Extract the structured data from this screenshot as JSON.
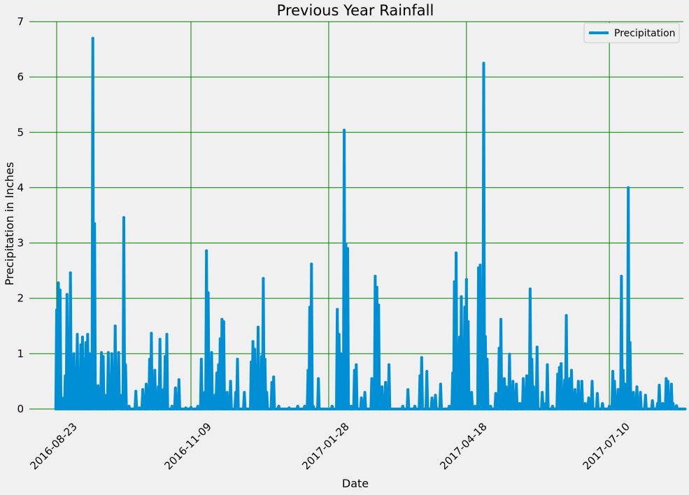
{
  "chart_data": {
    "type": "line",
    "title": "Previous Year Rainfall",
    "xlabel": "Date",
    "ylabel": "Precipitation in Inches",
    "x_range": [
      "2016-08-23",
      "2017-08-23"
    ],
    "ylim": [
      0,
      7
    ],
    "y_ticks": [
      0,
      1,
      2,
      3,
      4,
      5,
      6,
      7
    ],
    "x_tick_labels": [
      "2016-08-23",
      "2016-11-09",
      "2017-01-28",
      "2017-04-18",
      "2017-07-10"
    ],
    "grid": true,
    "grid_color": "#008000",
    "legend": {
      "position": "top-right",
      "entries": [
        "Precipitation"
      ]
    },
    "series": [
      {
        "name": "Precipitation",
        "color": "#008fd5",
        "points": [
          [
            "2016-08-23",
            1.79
          ],
          [
            "2016-08-24",
            2.28
          ],
          [
            "2016-08-25",
            2.15
          ],
          [
            "2016-08-26",
            0.2
          ],
          [
            "2016-08-27",
            0.05
          ],
          [
            "2016-08-28",
            0.6
          ],
          [
            "2016-08-29",
            2.07
          ],
          [
            "2016-08-30",
            0.05
          ],
          [
            "2016-08-31",
            2.46
          ],
          [
            "2016-09-01",
            0.03
          ],
          [
            "2016-09-02",
            1.0
          ],
          [
            "2016-09-03",
            0.75
          ],
          [
            "2016-09-04",
            1.35
          ],
          [
            "2016-09-05",
            0.3
          ],
          [
            "2016-09-06",
            1.16
          ],
          [
            "2016-09-07",
            1.3
          ],
          [
            "2016-09-08",
            0.9
          ],
          [
            "2016-09-09",
            1.2
          ],
          [
            "2016-09-10",
            1.35
          ],
          [
            "2016-09-11",
            1.0
          ],
          [
            "2016-09-13",
            6.7
          ],
          [
            "2016-09-14",
            3.35
          ],
          [
            "2016-09-15",
            0.4
          ],
          [
            "2016-09-16",
            0.42
          ],
          [
            "2016-09-17",
            0.2
          ],
          [
            "2016-09-18",
            1.02
          ],
          [
            "2016-09-19",
            0.95
          ],
          [
            "2016-09-20",
            0.25
          ],
          [
            "2016-09-22",
            1.02
          ],
          [
            "2016-09-24",
            1.0
          ],
          [
            "2016-09-26",
            1.5
          ],
          [
            "2016-09-27",
            0.33
          ],
          [
            "2016-09-28",
            1.02
          ],
          [
            "2016-09-29",
            0.25
          ],
          [
            "2016-10-01",
            3.46
          ],
          [
            "2016-10-02",
            0.8
          ],
          [
            "2016-10-04",
            0.05
          ],
          [
            "2016-10-08",
            0.32
          ],
          [
            "2016-10-10",
            0.02
          ],
          [
            "2016-10-12",
            0.35
          ],
          [
            "2016-10-14",
            0.45
          ],
          [
            "2016-10-16",
            0.9
          ],
          [
            "2016-10-17",
            1.37
          ],
          [
            "2016-10-19",
            0.7
          ],
          [
            "2016-10-21",
            0.4
          ],
          [
            "2016-10-22",
            1.26
          ],
          [
            "2016-10-24",
            0.35
          ],
          [
            "2016-10-25",
            0.95
          ],
          [
            "2016-10-26",
            1.35
          ],
          [
            "2016-10-29",
            0.05
          ],
          [
            "2016-10-31",
            0.38
          ],
          [
            "2016-11-02",
            0.53
          ],
          [
            "2016-11-06",
            0.02
          ],
          [
            "2016-11-09",
            0.03
          ],
          [
            "2016-11-13",
            0.05
          ],
          [
            "2016-11-15",
            0.9
          ],
          [
            "2016-11-17",
            0.3
          ],
          [
            "2016-11-18",
            2.86
          ],
          [
            "2016-11-19",
            2.1
          ],
          [
            "2016-11-20",
            0.7
          ],
          [
            "2016-11-21",
            1.02
          ],
          [
            "2016-11-23",
            0.25
          ],
          [
            "2016-11-24",
            0.65
          ],
          [
            "2016-11-25",
            0.8
          ],
          [
            "2016-11-26",
            1.27
          ],
          [
            "2016-11-27",
            1.62
          ],
          [
            "2016-11-28",
            1.58
          ],
          [
            "2016-11-30",
            0.3
          ],
          [
            "2016-12-02",
            0.5
          ],
          [
            "2016-12-05",
            0.3
          ],
          [
            "2016-12-06",
            0.9
          ],
          [
            "2016-12-10",
            0.3
          ],
          [
            "2016-12-14",
            0.85
          ],
          [
            "2016-12-15",
            1.22
          ],
          [
            "2016-12-16",
            1.08
          ],
          [
            "2016-12-18",
            1.48
          ],
          [
            "2016-12-20",
            0.95
          ],
          [
            "2016-12-21",
            2.36
          ],
          [
            "2016-12-22",
            0.9
          ],
          [
            "2016-12-23",
            0.3
          ],
          [
            "2016-12-26",
            0.48
          ],
          [
            "2016-12-27",
            0.58
          ],
          [
            "2016-12-30",
            0.05
          ],
          [
            "2017-01-05",
            0.02
          ],
          [
            "2017-01-10",
            0.05
          ],
          [
            "2017-01-14",
            0.05
          ],
          [
            "2017-01-16",
            0.7
          ],
          [
            "2017-01-17",
            1.84
          ],
          [
            "2017-01-18",
            2.62
          ],
          [
            "2017-01-19",
            0.05
          ],
          [
            "2017-01-22",
            0.55
          ],
          [
            "2017-01-30",
            0.05
          ],
          [
            "2017-02-02",
            1.8
          ],
          [
            "2017-02-03",
            1.35
          ],
          [
            "2017-02-04",
            1.0
          ],
          [
            "2017-02-05",
            0.05
          ],
          [
            "2017-02-06",
            5.04
          ],
          [
            "2017-02-07",
            2.98
          ],
          [
            "2017-02-08",
            2.9
          ],
          [
            "2017-02-10",
            0.05
          ],
          [
            "2017-02-12",
            0.7
          ],
          [
            "2017-02-13",
            0.8
          ],
          [
            "2017-02-16",
            0.2
          ],
          [
            "2017-02-18",
            0.3
          ],
          [
            "2017-02-22",
            0.55
          ],
          [
            "2017-02-24",
            2.4
          ],
          [
            "2017-02-25",
            2.2
          ],
          [
            "2017-02-26",
            1.88
          ],
          [
            "2017-02-28",
            0.4
          ],
          [
            "2017-03-02",
            0.48
          ],
          [
            "2017-03-04",
            0.8
          ],
          [
            "2017-03-12",
            0.05
          ],
          [
            "2017-03-15",
            0.35
          ],
          [
            "2017-03-19",
            0.05
          ],
          [
            "2017-03-22",
            0.6
          ],
          [
            "2017-03-23",
            0.93
          ],
          [
            "2017-03-26",
            0.68
          ],
          [
            "2017-03-29",
            0.2
          ],
          [
            "2017-03-31",
            0.25
          ],
          [
            "2017-04-03",
            0.45
          ],
          [
            "2017-04-08",
            0.05
          ],
          [
            "2017-04-10",
            0.65
          ],
          [
            "2017-04-11",
            2.3
          ],
          [
            "2017-04-12",
            2.82
          ],
          [
            "2017-04-13",
            0.9
          ],
          [
            "2017-04-14",
            1.3
          ],
          [
            "2017-04-15",
            2.03
          ],
          [
            "2017-04-16",
            0.35
          ],
          [
            "2017-04-17",
            1.84
          ],
          [
            "2017-04-18",
            2.34
          ],
          [
            "2017-04-19",
            1.58
          ],
          [
            "2017-04-21",
            0.3
          ],
          [
            "2017-04-23",
            0.05
          ],
          [
            "2017-04-25",
            2.55
          ],
          [
            "2017-04-26",
            2.6
          ],
          [
            "2017-04-28",
            6.25
          ],
          [
            "2017-04-29",
            1.31
          ],
          [
            "2017-04-30",
            0.9
          ],
          [
            "2017-05-02",
            0.05
          ],
          [
            "2017-05-05",
            0.28
          ],
          [
            "2017-05-07",
            1.1
          ],
          [
            "2017-05-08",
            1.62
          ],
          [
            "2017-05-10",
            0.55
          ],
          [
            "2017-05-11",
            0.4
          ],
          [
            "2017-05-13",
            0.99
          ],
          [
            "2017-05-15",
            0.5
          ],
          [
            "2017-05-17",
            0.45
          ],
          [
            "2017-05-19",
            0.1
          ],
          [
            "2017-05-21",
            0.55
          ],
          [
            "2017-05-22",
            0.25
          ],
          [
            "2017-05-23",
            0.6
          ],
          [
            "2017-05-25",
            2.17
          ],
          [
            "2017-05-26",
            0.9
          ],
          [
            "2017-05-27",
            0.4
          ],
          [
            "2017-05-29",
            1.12
          ],
          [
            "2017-06-01",
            0.3
          ],
          [
            "2017-06-03",
            0.1
          ],
          [
            "2017-06-04",
            0.8
          ],
          [
            "2017-06-07",
            0.05
          ],
          [
            "2017-06-10",
            0.63
          ],
          [
            "2017-06-11",
            0.75
          ],
          [
            "2017-06-12",
            0.82
          ],
          [
            "2017-06-14",
            0.52
          ],
          [
            "2017-06-15",
            1.69
          ],
          [
            "2017-06-17",
            0.55
          ],
          [
            "2017-06-18",
            0.7
          ],
          [
            "2017-06-20",
            0.35
          ],
          [
            "2017-06-22",
            0.5
          ],
          [
            "2017-06-24",
            0.5
          ],
          [
            "2017-06-26",
            0.1
          ],
          [
            "2017-06-28",
            0.2
          ],
          [
            "2017-06-30",
            0.5
          ],
          [
            "2017-07-03",
            0.28
          ],
          [
            "2017-07-06",
            0.1
          ],
          [
            "2017-07-10",
            0.05
          ],
          [
            "2017-07-12",
            0.68
          ],
          [
            "2017-07-13",
            0.5
          ],
          [
            "2017-07-15",
            0.35
          ],
          [
            "2017-07-16",
            0.35
          ],
          [
            "2017-07-17",
            2.4
          ],
          [
            "2017-07-18",
            0.7
          ],
          [
            "2017-07-19",
            0.45
          ],
          [
            "2017-07-20",
            0.3
          ],
          [
            "2017-07-21",
            4.0
          ],
          [
            "2017-07-22",
            1.2
          ],
          [
            "2017-07-24",
            0.3
          ],
          [
            "2017-07-26",
            0.4
          ],
          [
            "2017-07-28",
            0.3
          ],
          [
            "2017-07-31",
            0.25
          ],
          [
            "2017-08-04",
            0.15
          ],
          [
            "2017-08-07",
            0.1
          ],
          [
            "2017-08-08",
            0.43
          ],
          [
            "2017-08-10",
            0.1
          ],
          [
            "2017-08-12",
            0.55
          ],
          [
            "2017-08-13",
            0.5
          ],
          [
            "2017-08-14",
            0.22
          ],
          [
            "2017-08-15",
            0.45
          ],
          [
            "2017-08-16",
            0.1
          ],
          [
            "2017-08-18",
            0.06
          ]
        ]
      }
    ]
  }
}
